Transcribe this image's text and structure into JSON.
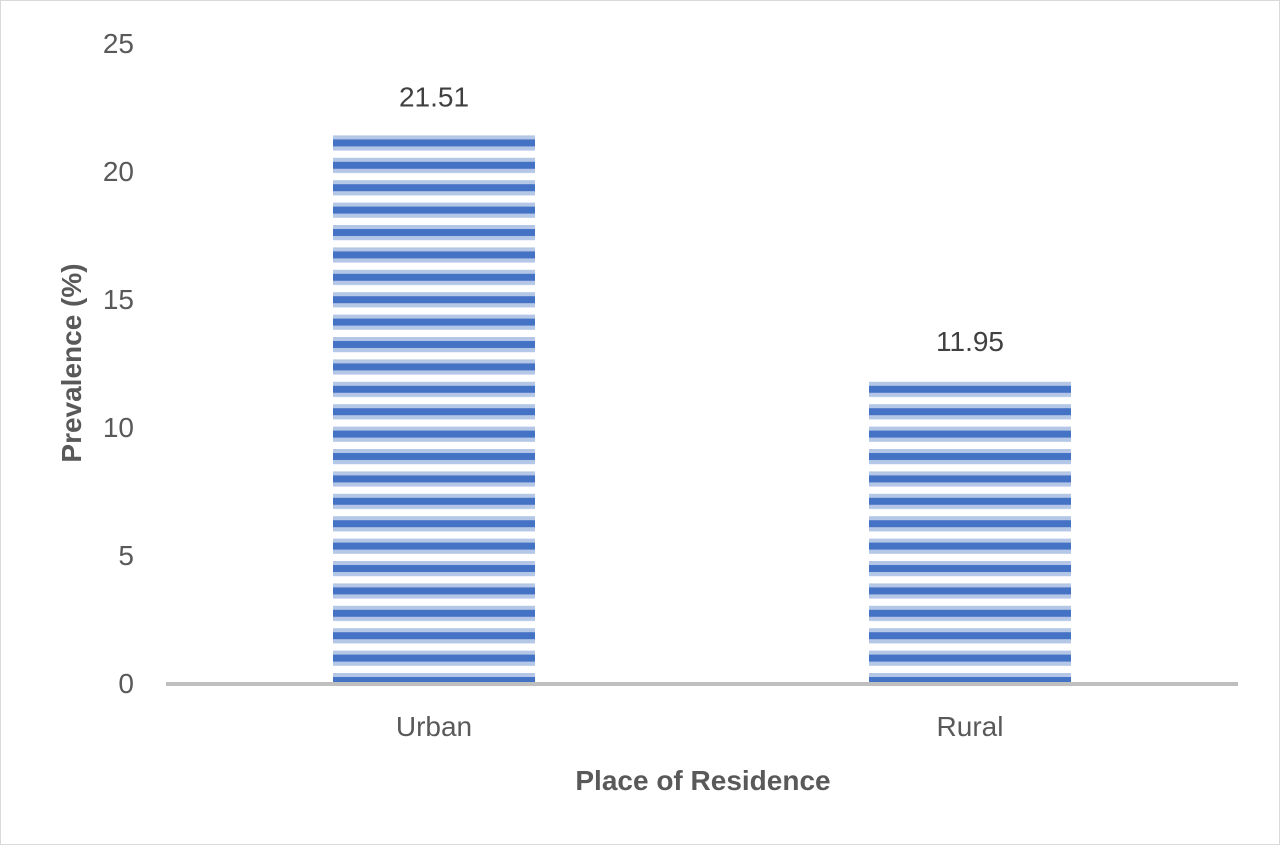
{
  "chart_data": {
    "type": "bar",
    "categories": [
      "Urban",
      "Rural"
    ],
    "values": [
      21.51,
      11.95
    ],
    "data_labels": [
      "21.51",
      "11.95"
    ],
    "title": "",
    "xlabel": "Place of Residence",
    "ylabel": "Prevalence (%)",
    "ylim": [
      0,
      25
    ],
    "y_ticks": [
      0,
      5,
      10,
      15,
      20,
      25
    ],
    "y_tick_labels": [
      "0",
      "5",
      "10",
      "15",
      "20",
      "25"
    ],
    "grid": false,
    "legend": "none",
    "bar_pattern": "horizontal stripes",
    "colors": {
      "bar_dark": "#4472c4",
      "bar_light": "#b4c7e7",
      "bar_white": "#ffffff",
      "axis_line": "#bfbfbf",
      "text": "#595959"
    }
  }
}
